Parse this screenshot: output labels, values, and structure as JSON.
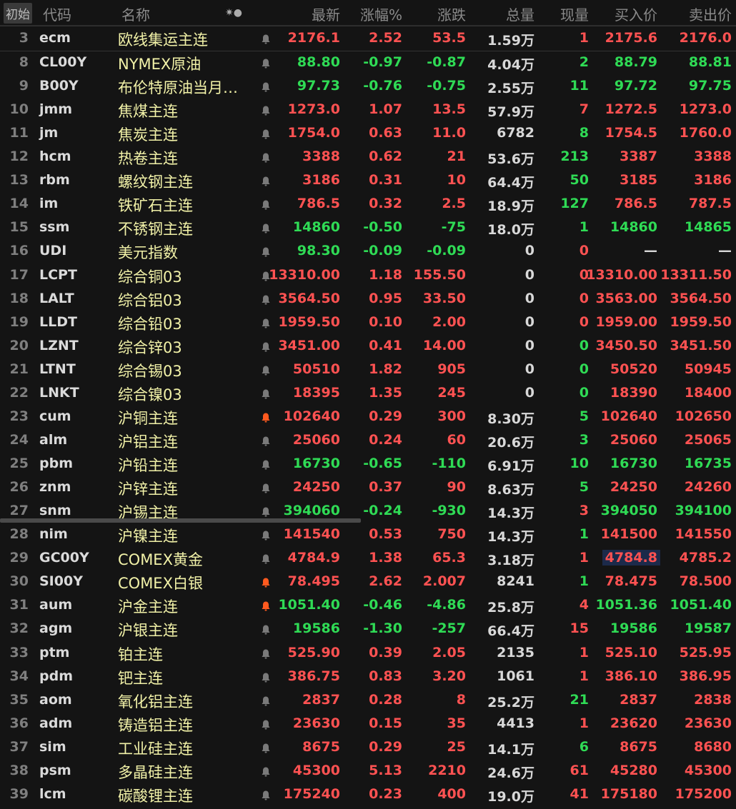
{
  "header": {
    "init_button": "初始",
    "code": "代码",
    "name": "名称",
    "icons": "✷●",
    "last": "最新",
    "pct": "涨幅%",
    "chg": "涨跌",
    "vol": "总量",
    "cur": "现量",
    "bid": "买入价",
    "ask": "卖出价"
  },
  "colors": {
    "up": "#ff5252",
    "down": "#2fdb55",
    "name": "#f2f2a8",
    "bell": "#7a7a7a",
    "bell_active": "#ff5a1f",
    "selection": "#1c2a4a"
  },
  "rows": [
    {
      "idx": "3",
      "code": "ecm",
      "name": "欧线集运主连",
      "last": "2176.1",
      "pct": "2.52",
      "chg": "53.5",
      "vol": "1.59万",
      "cur": "1",
      "bid": "2175.6",
      "ask": "2176.0",
      "dir": "up",
      "cur_dir": "up",
      "bell": "off"
    },
    {
      "idx": "8",
      "code": "CL00Y",
      "name": "NYMEX原油",
      "last": "88.80",
      "pct": "-0.97",
      "chg": "-0.87",
      "vol": "4.04万",
      "cur": "2",
      "bid": "88.79",
      "ask": "88.81",
      "dir": "dn",
      "cur_dir": "dn",
      "bell": "off"
    },
    {
      "idx": "9",
      "code": "B00Y",
      "name": "布伦特原油当月…",
      "last": "97.73",
      "pct": "-0.76",
      "chg": "-0.75",
      "vol": "2.55万",
      "cur": "11",
      "bid": "97.72",
      "ask": "97.75",
      "dir": "dn",
      "cur_dir": "dn",
      "bell": "off"
    },
    {
      "idx": "10",
      "code": "jmm",
      "name": "焦煤主连",
      "last": "1273.0",
      "pct": "1.07",
      "chg": "13.5",
      "vol": "57.9万",
      "cur": "7",
      "bid": "1272.5",
      "ask": "1273.0",
      "dir": "up",
      "cur_dir": "up",
      "bell": "off"
    },
    {
      "idx": "11",
      "code": "jm",
      "name": "焦炭主连",
      "last": "1754.0",
      "pct": "0.63",
      "chg": "11.0",
      "vol": "6782",
      "cur": "8",
      "bid": "1754.5",
      "ask": "1760.0",
      "dir": "up",
      "cur_dir": "dn",
      "bell": "off"
    },
    {
      "idx": "12",
      "code": "hcm",
      "name": "热卷主连",
      "last": "3388",
      "pct": "0.62",
      "chg": "21",
      "vol": "53.6万",
      "cur": "213",
      "bid": "3387",
      "ask": "3388",
      "dir": "up",
      "cur_dir": "dn",
      "bell": "off"
    },
    {
      "idx": "13",
      "code": "rbm",
      "name": "螺纹钢主连",
      "last": "3186",
      "pct": "0.31",
      "chg": "10",
      "vol": "64.4万",
      "cur": "50",
      "bid": "3185",
      "ask": "3186",
      "dir": "up",
      "cur_dir": "dn",
      "bell": "off"
    },
    {
      "idx": "14",
      "code": "im",
      "name": "铁矿石主连",
      "last": "786.5",
      "pct": "0.32",
      "chg": "2.5",
      "vol": "18.9万",
      "cur": "127",
      "bid": "786.5",
      "ask": "787.5",
      "dir": "up",
      "cur_dir": "dn",
      "bell": "off"
    },
    {
      "idx": "15",
      "code": "ssm",
      "name": "不锈钢主连",
      "last": "14860",
      "pct": "-0.50",
      "chg": "-75",
      "vol": "18.0万",
      "cur": "1",
      "bid": "14860",
      "ask": "14865",
      "dir": "dn",
      "cur_dir": "dn",
      "bell": "off"
    },
    {
      "idx": "16",
      "code": "UDI",
      "name": "美元指数",
      "last": "98.30",
      "pct": "-0.09",
      "chg": "-0.09",
      "vol": "0",
      "cur": "0",
      "bid": "—",
      "ask": "—",
      "dir": "dn",
      "cur_dir": "up",
      "bell": "off",
      "quote_dir": "flat"
    },
    {
      "idx": "17",
      "code": "LCPT",
      "name": "综合铜03",
      "last": "13310.00",
      "pct": "1.18",
      "chg": "155.50",
      "vol": "0",
      "cur": "0",
      "bid": "13310.00",
      "ask": "13311.50",
      "dir": "up",
      "cur_dir": "up",
      "bell": "off"
    },
    {
      "idx": "18",
      "code": "LALT",
      "name": "综合铝03",
      "last": "3564.50",
      "pct": "0.95",
      "chg": "33.50",
      "vol": "0",
      "cur": "0",
      "bid": "3563.00",
      "ask": "3564.50",
      "dir": "up",
      "cur_dir": "up",
      "bell": "off"
    },
    {
      "idx": "19",
      "code": "LLDT",
      "name": "综合铅03",
      "last": "1959.50",
      "pct": "0.10",
      "chg": "2.00",
      "vol": "0",
      "cur": "0",
      "bid": "1959.00",
      "ask": "1959.50",
      "dir": "up",
      "cur_dir": "up",
      "bell": "off"
    },
    {
      "idx": "20",
      "code": "LZNT",
      "name": "综合锌03",
      "last": "3451.00",
      "pct": "0.41",
      "chg": "14.00",
      "vol": "0",
      "cur": "0",
      "bid": "3450.50",
      "ask": "3451.50",
      "dir": "up",
      "cur_dir": "dn",
      "bell": "off"
    },
    {
      "idx": "21",
      "code": "LTNT",
      "name": "综合锡03",
      "last": "50510",
      "pct": "1.82",
      "chg": "905",
      "vol": "0",
      "cur": "0",
      "bid": "50520",
      "ask": "50945",
      "dir": "up",
      "cur_dir": "dn",
      "bell": "off"
    },
    {
      "idx": "22",
      "code": "LNKT",
      "name": "综合镍03",
      "last": "18395",
      "pct": "1.35",
      "chg": "245",
      "vol": "0",
      "cur": "0",
      "bid": "18390",
      "ask": "18400",
      "dir": "up",
      "cur_dir": "dn",
      "bell": "off"
    },
    {
      "idx": "23",
      "code": "cum",
      "name": "沪铜主连",
      "last": "102640",
      "pct": "0.29",
      "chg": "300",
      "vol": "8.30万",
      "cur": "5",
      "bid": "102640",
      "ask": "102650",
      "dir": "up",
      "cur_dir": "dn",
      "bell": "on"
    },
    {
      "idx": "24",
      "code": "alm",
      "name": "沪铝主连",
      "last": "25060",
      "pct": "0.24",
      "chg": "60",
      "vol": "20.6万",
      "cur": "3",
      "bid": "25060",
      "ask": "25065",
      "dir": "up",
      "cur_dir": "dn",
      "bell": "off"
    },
    {
      "idx": "25",
      "code": "pbm",
      "name": "沪铅主连",
      "last": "16730",
      "pct": "-0.65",
      "chg": "-110",
      "vol": "6.91万",
      "cur": "10",
      "bid": "16730",
      "ask": "16735",
      "dir": "dn",
      "cur_dir": "dn",
      "bell": "off"
    },
    {
      "idx": "26",
      "code": "znm",
      "name": "沪锌主连",
      "last": "24250",
      "pct": "0.37",
      "chg": "90",
      "vol": "8.63万",
      "cur": "5",
      "bid": "24250",
      "ask": "24260",
      "dir": "up",
      "cur_dir": "dn",
      "bell": "off"
    },
    {
      "idx": "27",
      "code": "snm",
      "name": "沪锡主连",
      "last": "394060",
      "pct": "-0.24",
      "chg": "-930",
      "vol": "14.3万",
      "cur": "3",
      "bid": "394050",
      "ask": "394100",
      "dir": "dn",
      "cur_dir": "up",
      "bell": "off"
    },
    {
      "idx": "28",
      "code": "nim",
      "name": "沪镍主连",
      "last": "141540",
      "pct": "0.53",
      "chg": "750",
      "vol": "14.3万",
      "cur": "1",
      "bid": "141500",
      "ask": "141550",
      "dir": "up",
      "cur_dir": "dn",
      "bell": "off"
    },
    {
      "idx": "29",
      "code": "GC00Y",
      "name": "COMEX黄金",
      "last": "4784.9",
      "pct": "1.38",
      "chg": "65.3",
      "vol": "3.18万",
      "cur": "1",
      "bid": "4784.8",
      "ask": "4785.2",
      "dir": "up",
      "cur_dir": "up",
      "bell": "off",
      "selected_bid": true
    },
    {
      "idx": "30",
      "code": "SI00Y",
      "name": "COMEX白银",
      "last": "78.495",
      "pct": "2.62",
      "chg": "2.007",
      "vol": "8241",
      "cur": "1",
      "bid": "78.475",
      "ask": "78.500",
      "dir": "up",
      "cur_dir": "dn",
      "bell": "on"
    },
    {
      "idx": "31",
      "code": "aum",
      "name": "沪金主连",
      "last": "1051.40",
      "pct": "-0.46",
      "chg": "-4.86",
      "vol": "25.8万",
      "cur": "4",
      "bid": "1051.36",
      "ask": "1051.40",
      "dir": "dn",
      "cur_dir": "up",
      "bell": "on"
    },
    {
      "idx": "32",
      "code": "agm",
      "name": "沪银主连",
      "last": "19586",
      "pct": "-1.30",
      "chg": "-257",
      "vol": "66.4万",
      "cur": "15",
      "bid": "19586",
      "ask": "19587",
      "dir": "dn",
      "cur_dir": "up",
      "bell": "off"
    },
    {
      "idx": "33",
      "code": "ptm",
      "name": "铂主连",
      "last": "525.90",
      "pct": "0.39",
      "chg": "2.05",
      "vol": "2135",
      "cur": "1",
      "bid": "525.10",
      "ask": "525.95",
      "dir": "up",
      "cur_dir": "up",
      "bell": "off"
    },
    {
      "idx": "34",
      "code": "pdm",
      "name": "钯主连",
      "last": "386.75",
      "pct": "0.83",
      "chg": "3.20",
      "vol": "1061",
      "cur": "1",
      "bid": "386.10",
      "ask": "386.95",
      "dir": "up",
      "cur_dir": "up",
      "bell": "off"
    },
    {
      "idx": "35",
      "code": "aom",
      "name": "氧化铝主连",
      "last": "2837",
      "pct": "0.28",
      "chg": "8",
      "vol": "25.2万",
      "cur": "21",
      "bid": "2837",
      "ask": "2838",
      "dir": "up",
      "cur_dir": "dn",
      "bell": "off"
    },
    {
      "idx": "36",
      "code": "adm",
      "name": "铸造铝主连",
      "last": "23630",
      "pct": "0.15",
      "chg": "35",
      "vol": "4413",
      "cur": "1",
      "bid": "23620",
      "ask": "23630",
      "dir": "up",
      "cur_dir": "up",
      "bell": "off"
    },
    {
      "idx": "37",
      "code": "sim",
      "name": "工业硅主连",
      "last": "8675",
      "pct": "0.29",
      "chg": "25",
      "vol": "14.1万",
      "cur": "6",
      "bid": "8675",
      "ask": "8680",
      "dir": "up",
      "cur_dir": "dn",
      "bell": "off"
    },
    {
      "idx": "38",
      "code": "psm",
      "name": "多晶硅主连",
      "last": "45300",
      "pct": "5.13",
      "chg": "2210",
      "vol": "24.6万",
      "cur": "61",
      "bid": "45280",
      "ask": "45300",
      "dir": "up",
      "cur_dir": "up",
      "bell": "off"
    },
    {
      "idx": "39",
      "code": "lcm",
      "name": "碳酸锂主连",
      "last": "175240",
      "pct": "0.23",
      "chg": "400",
      "vol": "19.0万",
      "cur": "41",
      "bid": "175180",
      "ask": "175200",
      "dir": "up",
      "cur_dir": "up",
      "bell": "off"
    }
  ]
}
